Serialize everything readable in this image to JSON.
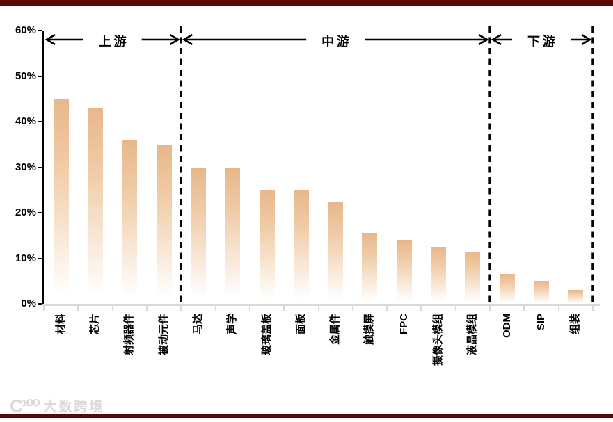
{
  "page": {
    "background": "#ffffff",
    "border_bar_color": "#5c0708"
  },
  "watermark": {
    "logo": "C¹⁰⁰",
    "text": "大数跨境"
  },
  "chart_data": {
    "type": "bar",
    "title": "",
    "xlabel": "",
    "ylabel": "",
    "categories": [
      "材料",
      "芯片",
      "射频器件",
      "被动元件",
      "马达",
      "声学",
      "玻璃盖板",
      "面板",
      "金属件",
      "触摸屏",
      "FPC",
      "摄像头模组",
      "液晶模组",
      "ODM",
      "SIP",
      "组装"
    ],
    "values": [
      45,
      43,
      36,
      35,
      30,
      30,
      25,
      25,
      22.5,
      15.5,
      14,
      12.5,
      11.5,
      6.5,
      5,
      3
    ],
    "unit": "%",
    "ylim": [
      0,
      60
    ],
    "ytick_values": [
      60,
      50,
      40,
      30,
      20,
      10,
      0
    ],
    "ytick_labels": [
      "60%",
      "50%",
      "40%",
      "30%",
      "20%",
      "10%",
      "0%"
    ],
    "grid": false,
    "legend": false,
    "bar_color_top": "#e8b78a",
    "bar_color_mid": "#f0cba6",
    "bar_color_bottom": "#ffffff",
    "axis_color": "#000000",
    "baseline_color": "#d9d9d9",
    "zones": [
      {
        "label": "上游",
        "from": 0,
        "to": 4
      },
      {
        "label": "中游",
        "from": 4,
        "to": 13
      },
      {
        "label": "下游",
        "from": 13,
        "to": 16
      }
    ],
    "separator_indices": [
      4,
      13,
      16
    ]
  }
}
